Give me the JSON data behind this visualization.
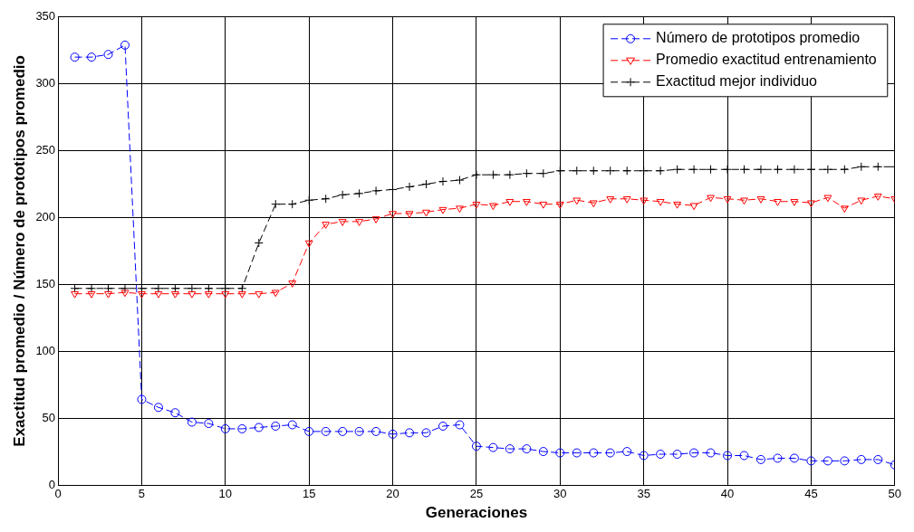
{
  "chart_data": {
    "type": "line",
    "xlabel": "Generaciones",
    "ylabel": "Exactitud promedio / Número de prototipos promedio",
    "x": [
      1,
      2,
      3,
      4,
      5,
      6,
      7,
      8,
      9,
      10,
      11,
      12,
      13,
      14,
      15,
      16,
      17,
      18,
      19,
      20,
      21,
      22,
      23,
      24,
      25,
      26,
      27,
      28,
      29,
      30,
      31,
      32,
      33,
      34,
      35,
      36,
      37,
      38,
      39,
      40,
      41,
      42,
      43,
      44,
      45,
      46,
      47,
      48,
      49,
      50
    ],
    "series": [
      {
        "name": "Número de prototipos promedio",
        "color": "#0000ff",
        "marker": "circle",
        "line_style": "dashed",
        "values": [
          320,
          320,
          322,
          329,
          64,
          58,
          54,
          47,
          46,
          42,
          42,
          43,
          44,
          45,
          40,
          40,
          40,
          40,
          40,
          38,
          39,
          39,
          44,
          45,
          29,
          28,
          27,
          27,
          25,
          24,
          24,
          24,
          24,
          25,
          22,
          23,
          23,
          24,
          24,
          22,
          22,
          19,
          20,
          20,
          18,
          18,
          18,
          19,
          19,
          15
        ]
      },
      {
        "name": "Promedio exactitud entrenamiento",
        "color": "#ff0000",
        "marker": "triangle",
        "line_style": "dashed",
        "values": [
          143,
          143,
          143,
          144,
          143,
          143,
          143,
          143,
          143,
          143,
          143,
          143,
          144,
          151,
          181,
          195,
          197,
          197,
          199,
          203,
          203,
          204,
          206,
          207,
          210,
          209,
          212,
          212,
          210,
          210,
          213,
          211,
          214,
          214,
          213,
          212,
          210,
          209,
          215,
          214,
          213,
          214,
          212,
          212,
          211,
          215,
          207,
          213,
          216,
          214
        ]
      },
      {
        "name": "Exactitud mejor individuo",
        "color": "#000000",
        "marker": "cross",
        "line_style": "dashed",
        "values": [
          147,
          147,
          147,
          147,
          147,
          147,
          147,
          147,
          147,
          147,
          147,
          181,
          210,
          210,
          213,
          214,
          217,
          218,
          220,
          221,
          223,
          225,
          227,
          228,
          232,
          232,
          232,
          233,
          233,
          235,
          235,
          235,
          235,
          235,
          235,
          235,
          236,
          236,
          236,
          236,
          236,
          236,
          236,
          236,
          236,
          236,
          236,
          238,
          238,
          238
        ]
      }
    ],
    "xlim": [
      0,
      50
    ],
    "xticks": [
      0,
      5,
      10,
      15,
      20,
      25,
      30,
      35,
      40,
      45,
      50
    ],
    "ylim": [
      0,
      350
    ],
    "yticks": [
      0,
      50,
      100,
      150,
      200,
      250,
      300,
      350
    ],
    "grid": true,
    "legend": "top right"
  }
}
